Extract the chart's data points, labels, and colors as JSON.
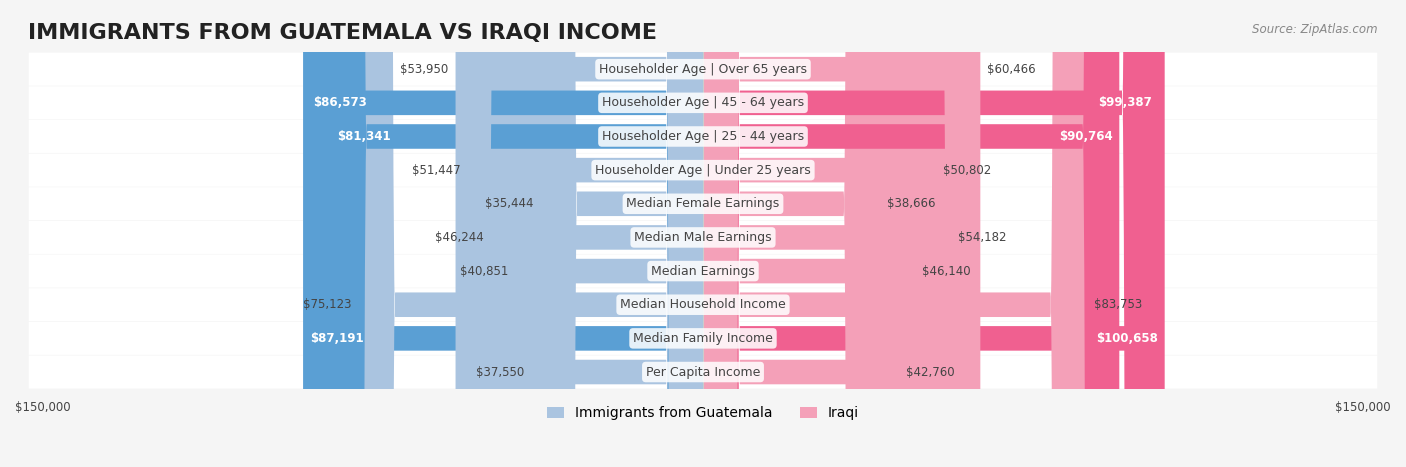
{
  "title": "IMMIGRANTS FROM GUATEMALA VS IRAQI INCOME",
  "source": "Source: ZipAtlas.com",
  "categories": [
    "Per Capita Income",
    "Median Family Income",
    "Median Household Income",
    "Median Earnings",
    "Median Male Earnings",
    "Median Female Earnings",
    "Householder Age | Under 25 years",
    "Householder Age | 25 - 44 years",
    "Householder Age | 45 - 64 years",
    "Householder Age | Over 65 years"
  ],
  "guatemala_values": [
    37550,
    87191,
    75123,
    40851,
    46244,
    35444,
    51447,
    81341,
    86573,
    53950
  ],
  "iraqi_values": [
    42760,
    100658,
    83753,
    46140,
    54182,
    38666,
    50802,
    90764,
    99387,
    60466
  ],
  "max_value": 150000,
  "guatemala_color_light": "#aac4e0",
  "guatemala_color_dark": "#5a9fd4",
  "iraqi_color_light": "#f4a0b8",
  "iraqi_color_dark": "#f06090",
  "iraqi_highlight_threshold": 90000,
  "guatemala_highlight_threshold": 80000,
  "background_color": "#f5f5f5",
  "row_bg_color": "#f0f0f0",
  "label_color": "#444444",
  "white_text_color": "#ffffff",
  "legend_guatemala": "Immigrants from Guatemala",
  "legend_iraqi": "Iraqi",
  "axis_label_left": "$150,000",
  "axis_label_right": "$150,000",
  "title_fontsize": 16,
  "label_fontsize": 9,
  "value_fontsize": 8.5,
  "legend_fontsize": 10
}
